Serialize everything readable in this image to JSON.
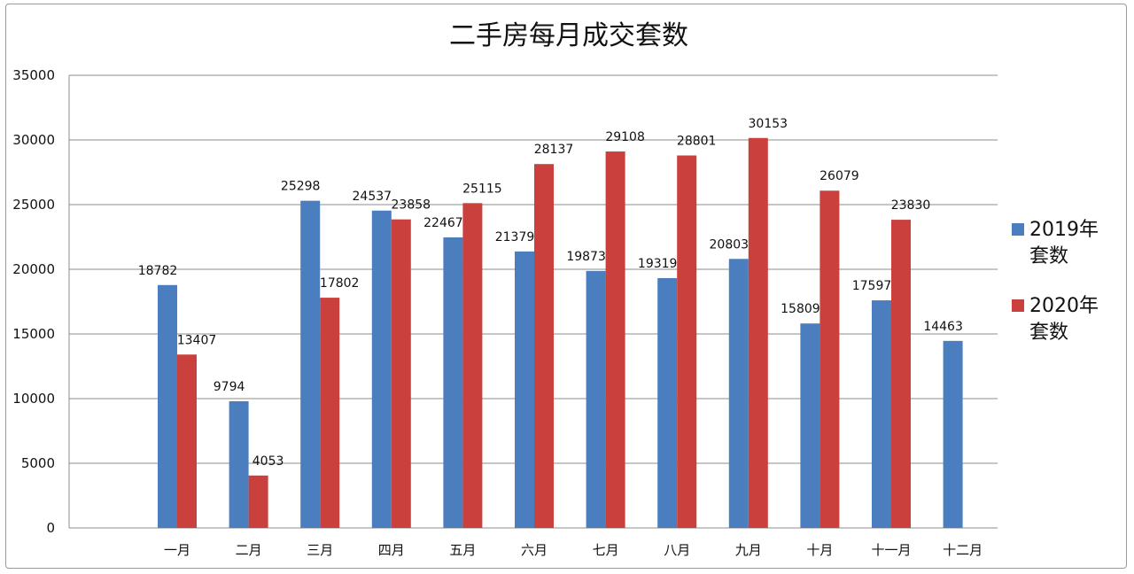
{
  "chart_data": {
    "type": "bar",
    "title": "二手房每月成交套数",
    "xlabel": "",
    "ylabel": "",
    "ylim": [
      0,
      35000
    ],
    "yticks": [
      0,
      5000,
      10000,
      15000,
      20000,
      25000,
      30000,
      35000
    ],
    "grid": true,
    "legend_position": "right",
    "categories": [
      "一月",
      "二月",
      "三月",
      "四月",
      "五月",
      "六月",
      "七月",
      "八月",
      "九月",
      "十月",
      "十一月",
      "十二月"
    ],
    "series": [
      {
        "name": "2019年套数",
        "legend_lines": [
          "2019年",
          "套数"
        ],
        "color": "#4a7ebf",
        "values": [
          18782,
          9794,
          25298,
          24537,
          22467,
          21379,
          19873,
          19319,
          20803,
          15809,
          17597,
          14463
        ]
      },
      {
        "name": "2020年套数",
        "legend_lines": [
          "2020年",
          "套数"
        ],
        "color": "#c9403d",
        "values": [
          13407,
          4053,
          17802,
          23858,
          25115,
          28137,
          29108,
          28801,
          30153,
          26079,
          23830,
          null
        ]
      }
    ]
  }
}
